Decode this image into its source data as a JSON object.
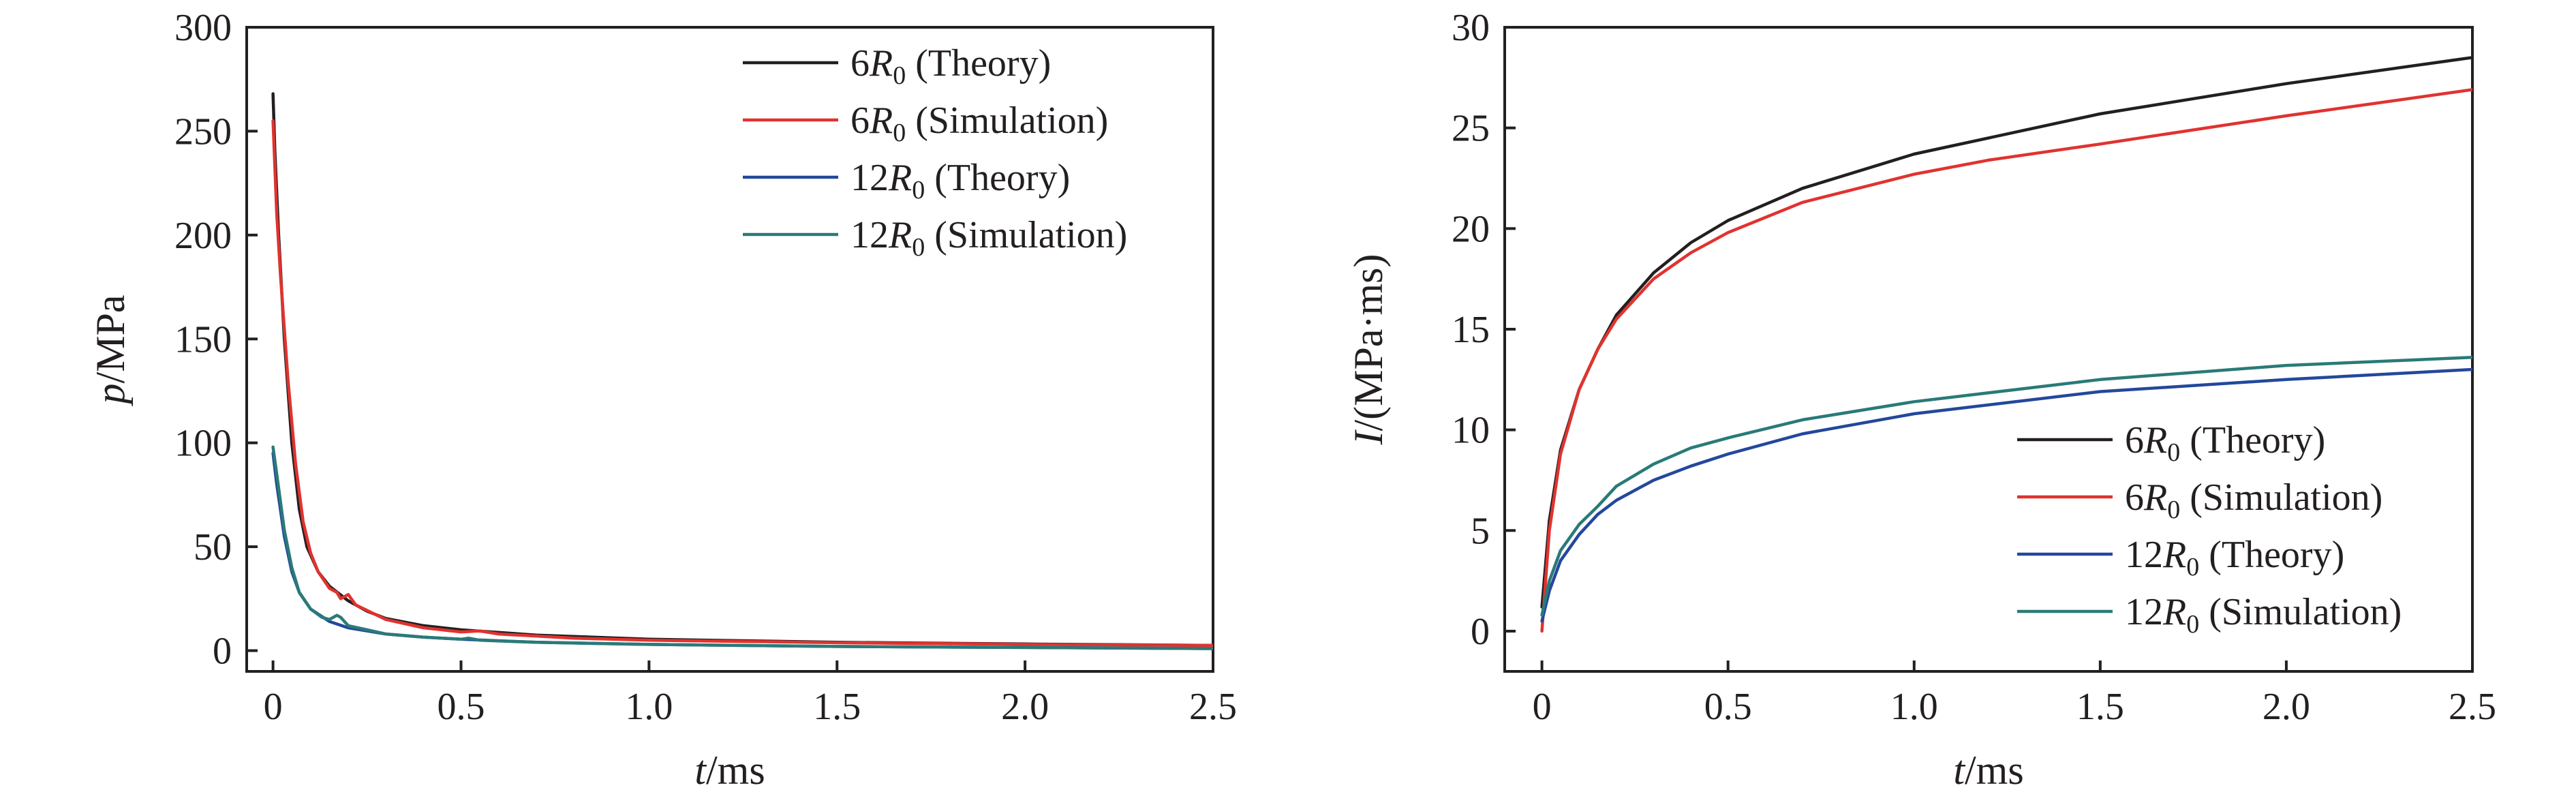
{
  "chart_data": [
    {
      "type": "line",
      "ylabel_var": "p",
      "ylabel_unit": "/MPa",
      "xlabel_var": "t",
      "xlabel_unit": "/ms",
      "xlim": [
        -0.07,
        2.5
      ],
      "ylim": [
        -10,
        300
      ],
      "x_ticks": [
        "0",
        "0.5",
        "1.0",
        "1.5",
        "2.0",
        "2.5"
      ],
      "y_ticks": [
        "0",
        "50",
        "100",
        "150",
        "200",
        "250",
        "300"
      ],
      "legend_position": "top-right",
      "series": [
        {
          "name": "6R0 (Theory)",
          "label_num": "6",
          "label_var": "R",
          "label_sub": "0",
          "label_tail": " (Theory)",
          "color": "#231f20",
          "points": [
            [
              0,
              268
            ],
            [
              0.005,
              240
            ],
            [
              0.015,
              200
            ],
            [
              0.03,
              150
            ],
            [
              0.05,
              100
            ],
            [
              0.07,
              68
            ],
            [
              0.09,
              50
            ],
            [
              0.12,
              38
            ],
            [
              0.15,
              31
            ],
            [
              0.2,
              24
            ],
            [
              0.25,
              19
            ],
            [
              0.3,
              15.5
            ],
            [
              0.4,
              12
            ],
            [
              0.5,
              10
            ],
            [
              0.7,
              7.5
            ],
            [
              1.0,
              5.5
            ],
            [
              1.5,
              4
            ],
            [
              2.0,
              3.2
            ],
            [
              2.5,
              2.5
            ]
          ]
        },
        {
          "name": "6R0 (Simulation)",
          "label_num": "6",
          "label_var": "R",
          "label_sub": "0",
          "label_tail": " (Simulation)",
          "color": "#e0332f",
          "points": [
            [
              0,
              255
            ],
            [
              0.01,
              210
            ],
            [
              0.02,
              180
            ],
            [
              0.04,
              130
            ],
            [
              0.06,
              90
            ],
            [
              0.08,
              62
            ],
            [
              0.1,
              47
            ],
            [
              0.12,
              38
            ],
            [
              0.15,
              30
            ],
            [
              0.17,
              28
            ],
            [
              0.18,
              25
            ],
            [
              0.2,
              27
            ],
            [
              0.22,
              22
            ],
            [
              0.3,
              15
            ],
            [
              0.4,
              11
            ],
            [
              0.5,
              9
            ],
            [
              0.55,
              9.5
            ],
            [
              0.6,
              8
            ],
            [
              0.8,
              6
            ],
            [
              1.0,
              5
            ],
            [
              1.5,
              3.8
            ],
            [
              2.0,
              3
            ],
            [
              2.5,
              2.5
            ]
          ]
        },
        {
          "name": "12R0 (Theory)",
          "label_num": "12",
          "label_var": "R",
          "label_sub": "0",
          "label_tail": " (Theory)",
          "color": "#23489c",
          "points": [
            [
              0,
              95
            ],
            [
              0.01,
              80
            ],
            [
              0.03,
              55
            ],
            [
              0.05,
              38
            ],
            [
              0.07,
              28
            ],
            [
              0.1,
              20
            ],
            [
              0.15,
              14
            ],
            [
              0.2,
              11
            ],
            [
              0.3,
              8
            ],
            [
              0.4,
              6.5
            ],
            [
              0.5,
              5.5
            ],
            [
              0.7,
              4
            ],
            [
              1.0,
              3
            ],
            [
              1.5,
              2
            ],
            [
              2.0,
              1.5
            ],
            [
              2.5,
              1
            ]
          ]
        },
        {
          "name": "12R0 (Simulation)",
          "label_num": "12",
          "label_var": "R",
          "label_sub": "0",
          "label_tail": " (Simulation)",
          "color": "#2a7a78",
          "points": [
            [
              0,
              98
            ],
            [
              0.01,
              85
            ],
            [
              0.03,
              58
            ],
            [
              0.05,
              40
            ],
            [
              0.07,
              28
            ],
            [
              0.1,
              20
            ],
            [
              0.13,
              16
            ],
            [
              0.15,
              15
            ],
            [
              0.17,
              17
            ],
            [
              0.18,
              16
            ],
            [
              0.2,
              12
            ],
            [
              0.25,
              10
            ],
            [
              0.3,
              8
            ],
            [
              0.4,
              6.5
            ],
            [
              0.5,
              5.5
            ],
            [
              0.52,
              6
            ],
            [
              0.55,
              5
            ],
            [
              0.7,
              4
            ],
            [
              1.0,
              3
            ],
            [
              1.5,
              2
            ],
            [
              2.0,
              1.5
            ],
            [
              2.5,
              1
            ]
          ]
        }
      ]
    },
    {
      "type": "line",
      "ylabel_var": "I",
      "ylabel_unit": "/(MPa·ms)",
      "xlabel_var": "t",
      "xlabel_unit": "/ms",
      "xlim": [
        -0.1,
        2.5
      ],
      "ylim": [
        -2,
        30
      ],
      "x_ticks": [
        "0",
        "0.5",
        "1.0",
        "1.5",
        "2.0",
        "2.5"
      ],
      "y_ticks": [
        "0",
        "5",
        "10",
        "15",
        "20",
        "25",
        "30"
      ],
      "legend_position": "bottom-right",
      "series": [
        {
          "name": "6R0 (Theory)",
          "label_num": "6",
          "label_var": "R",
          "label_sub": "0",
          "label_tail": " (Theory)",
          "color": "#231f20",
          "points": [
            [
              0,
              1.2
            ],
            [
              0.02,
              5.5
            ],
            [
              0.05,
              9
            ],
            [
              0.1,
              12
            ],
            [
              0.15,
              14
            ],
            [
              0.2,
              15.7
            ],
            [
              0.3,
              17.8
            ],
            [
              0.4,
              19.3
            ],
            [
              0.5,
              20.4
            ],
            [
              0.7,
              22
            ],
            [
              1.0,
              23.7
            ],
            [
              1.5,
              25.7
            ],
            [
              2.0,
              27.2
            ],
            [
              2.5,
              28.5
            ]
          ]
        },
        {
          "name": "6R0 (Simulation)",
          "label_num": "6",
          "label_var": "R",
          "label_sub": "0",
          "label_tail": " (Simulation)",
          "color": "#e0332f",
          "points": [
            [
              0,
              0
            ],
            [
              0.02,
              5
            ],
            [
              0.05,
              8.8
            ],
            [
              0.1,
              12
            ],
            [
              0.15,
              14
            ],
            [
              0.2,
              15.5
            ],
            [
              0.3,
              17.5
            ],
            [
              0.4,
              18.8
            ],
            [
              0.5,
              19.8
            ],
            [
              0.7,
              21.3
            ],
            [
              1.0,
              22.7
            ],
            [
              1.2,
              23.4
            ],
            [
              1.5,
              24.2
            ],
            [
              2.0,
              25.6
            ],
            [
              2.5,
              26.9
            ]
          ]
        },
        {
          "name": "12R0 (Theory)",
          "label_num": "12",
          "label_var": "R",
          "label_sub": "0",
          "label_tail": " (Theory)",
          "color": "#23489c",
          "points": [
            [
              0,
              0.5
            ],
            [
              0.02,
              2
            ],
            [
              0.05,
              3.5
            ],
            [
              0.1,
              4.8
            ],
            [
              0.15,
              5.8
            ],
            [
              0.2,
              6.5
            ],
            [
              0.3,
              7.5
            ],
            [
              0.4,
              8.2
            ],
            [
              0.5,
              8.8
            ],
            [
              0.7,
              9.8
            ],
            [
              1.0,
              10.8
            ],
            [
              1.5,
              11.9
            ],
            [
              2.0,
              12.5
            ],
            [
              2.5,
              13
            ]
          ]
        },
        {
          "name": "12R0 (Simulation)",
          "label_num": "12",
          "label_var": "R",
          "label_sub": "0",
          "label_tail": " (Simulation)",
          "color": "#2a7a78",
          "points": [
            [
              0,
              0.8
            ],
            [
              0.02,
              2.5
            ],
            [
              0.05,
              4
            ],
            [
              0.1,
              5.3
            ],
            [
              0.15,
              6.2
            ],
            [
              0.2,
              7.2
            ],
            [
              0.3,
              8.3
            ],
            [
              0.4,
              9.1
            ],
            [
              0.5,
              9.6
            ],
            [
              0.7,
              10.5
            ],
            [
              1.0,
              11.4
            ],
            [
              1.5,
              12.5
            ],
            [
              2.0,
              13.2
            ],
            [
              2.5,
              13.6
            ]
          ]
        }
      ]
    }
  ]
}
